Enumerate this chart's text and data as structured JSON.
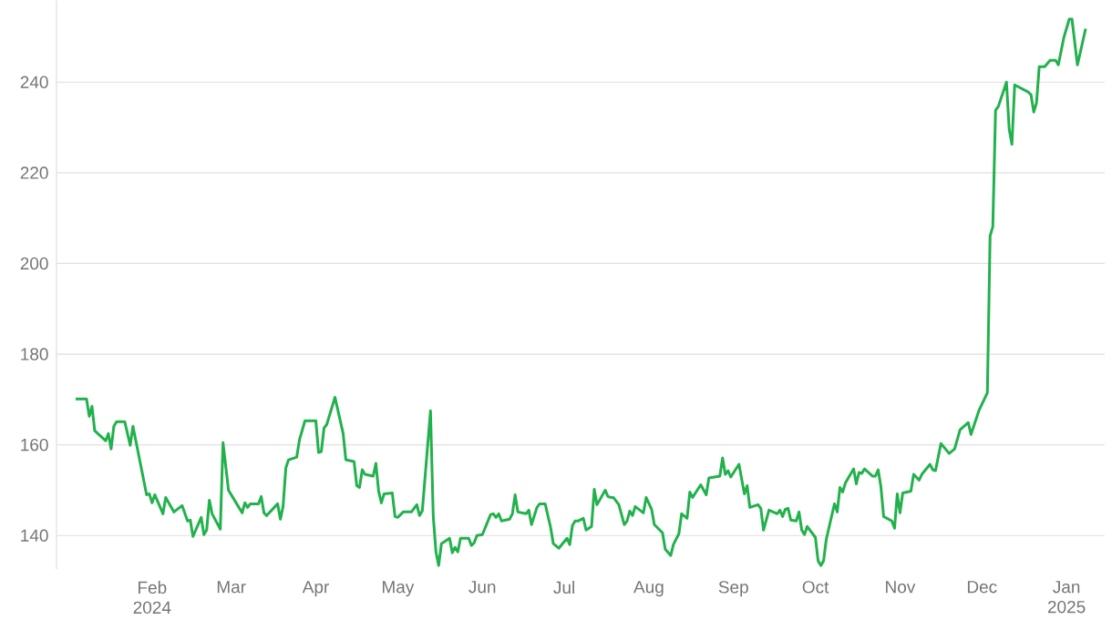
{
  "chart_data": {
    "type": "line",
    "color": "#22b14c",
    "line_style": "solid",
    "grid": "y",
    "xlim": [
      "2023-12-28",
      "2025-01-15"
    ],
    "ylim": [
      132.5,
      258
    ],
    "yticks": [
      140,
      160,
      180,
      200,
      220,
      240
    ],
    "xticks": [
      {
        "value": "2024-02-01",
        "label": "Feb 2024"
      },
      {
        "value": "2024-03-01",
        "label": "Mar"
      },
      {
        "value": "2024-04-01",
        "label": "Apr"
      },
      {
        "value": "2024-05-01",
        "label": "May"
      },
      {
        "value": "2024-06-01",
        "label": "Jun"
      },
      {
        "value": "2024-07-01",
        "label": "Jul"
      },
      {
        "value": "2024-08-01",
        "label": "Aug"
      },
      {
        "value": "2024-09-01",
        "label": "Sep"
      },
      {
        "value": "2024-10-01",
        "label": "Oct"
      },
      {
        "value": "2024-11-01",
        "label": "Nov"
      },
      {
        "value": "2024-12-01",
        "label": "Dec"
      },
      {
        "value": "2025-01-01",
        "label": "Jan 2025"
      }
    ],
    "x": [
      "2024-01-04",
      "2024-01-08",
      "2024-01-09",
      "2024-01-10",
      "2024-01-11",
      "2024-01-15",
      "2024-01-16",
      "2024-01-17",
      "2024-01-18",
      "2024-01-19",
      "2024-01-22",
      "2024-01-24",
      "2024-01-25",
      "2024-01-30",
      "2024-01-31",
      "2024-02-01",
      "2024-02-02",
      "2024-02-05",
      "2024-02-06",
      "2024-02-09",
      "2024-02-12",
      "2024-02-14",
      "2024-02-15",
      "2024-02-16",
      "2024-02-19",
      "2024-02-20",
      "2024-02-21",
      "2024-02-22",
      "2024-02-23",
      "2024-02-26",
      "2024-02-27",
      "2024-02-29",
      "2024-03-03",
      "2024-03-05",
      "2024-03-06",
      "2024-03-07",
      "2024-03-08",
      "2024-03-11",
      "2024-03-12",
      "2024-03-13",
      "2024-03-14",
      "2024-03-18",
      "2024-03-19",
      "2024-03-20",
      "2024-03-21",
      "2024-03-22",
      "2024-03-25",
      "2024-03-26",
      "2024-03-28",
      "2024-04-01",
      "2024-04-02",
      "2024-04-03",
      "2024-04-04",
      "2024-04-05",
      "2024-04-08",
      "2024-04-11",
      "2024-04-12",
      "2024-04-15",
      "2024-04-16",
      "2024-04-17",
      "2024-04-18",
      "2024-04-19",
      "2024-04-22",
      "2024-04-23",
      "2024-04-24",
      "2024-04-25",
      "2024-04-26",
      "2024-04-29",
      "2024-04-30",
      "2024-05-01",
      "2024-05-03",
      "2024-05-06",
      "2024-05-08",
      "2024-05-09",
      "2024-05-10",
      "2024-05-13",
      "2024-05-14",
      "2024-05-15",
      "2024-05-16",
      "2024-05-17",
      "2024-05-20",
      "2024-05-21",
      "2024-05-22",
      "2024-05-23",
      "2024-05-24",
      "2024-05-27",
      "2024-05-28",
      "2024-05-29",
      "2024-05-30",
      "2024-06-01",
      "2024-06-04",
      "2024-06-05",
      "2024-06-06",
      "2024-06-07",
      "2024-06-08",
      "2024-06-11",
      "2024-06-12",
      "2024-06-13",
      "2024-06-14",
      "2024-06-17",
      "2024-06-18",
      "2024-06-19",
      "2024-06-21",
      "2024-06-22",
      "2024-06-24",
      "2024-06-26",
      "2024-06-27",
      "2024-06-29",
      "2024-07-02",
      "2024-07-03",
      "2024-07-04",
      "2024-07-05",
      "2024-07-06",
      "2024-07-08",
      "2024-07-09",
      "2024-07-11",
      "2024-07-12",
      "2024-07-13",
      "2024-07-16",
      "2024-07-17",
      "2024-07-18",
      "2024-07-19",
      "2024-07-21",
      "2024-07-23",
      "2024-07-24",
      "2024-07-25",
      "2024-07-26",
      "2024-07-27",
      "2024-07-30",
      "2024-07-31",
      "2024-08-02",
      "2024-08-03",
      "2024-08-06",
      "2024-08-07",
      "2024-08-09",
      "2024-08-10",
      "2024-08-12",
      "2024-08-13",
      "2024-08-15",
      "2024-08-16",
      "2024-08-17",
      "2024-08-20",
      "2024-08-22",
      "2024-08-23",
      "2024-08-27",
      "2024-08-28",
      "2024-08-29",
      "2024-08-30",
      "2024-08-31",
      "2024-09-03",
      "2024-09-05",
      "2024-09-06",
      "2024-09-07",
      "2024-09-10",
      "2024-09-11",
      "2024-09-12",
      "2024-09-14",
      "2024-09-17",
      "2024-09-18",
      "2024-09-19",
      "2024-09-20",
      "2024-09-21",
      "2024-09-22",
      "2024-09-24",
      "2024-09-25",
      "2024-09-26",
      "2024-09-27",
      "2024-09-28",
      "2024-10-01",
      "2024-10-02",
      "2024-10-03",
      "2024-10-04",
      "2024-10-05",
      "2024-10-08",
      "2024-10-09",
      "2024-10-10",
      "2024-10-11",
      "2024-10-12",
      "2024-10-15",
      "2024-10-16",
      "2024-10-17",
      "2024-10-18",
      "2024-10-19",
      "2024-10-22",
      "2024-10-23",
      "2024-10-24",
      "2024-10-25",
      "2024-10-26",
      "2024-10-29",
      "2024-10-30",
      "2024-10-31",
      "2024-11-01",
      "2024-11-02",
      "2024-11-05",
      "2024-11-06",
      "2024-11-08",
      "2024-11-09",
      "2024-11-12",
      "2024-11-13",
      "2024-11-14",
      "2024-11-16",
      "2024-11-19",
      "2024-11-21",
      "2024-11-23",
      "2024-11-26",
      "2024-11-27",
      "2024-11-30",
      "2024-12-03",
      "2024-12-04",
      "2024-12-05",
      "2024-12-06",
      "2024-12-07",
      "2024-12-10",
      "2024-12-11",
      "2024-12-12",
      "2024-12-13",
      "2024-12-18",
      "2024-12-19",
      "2024-12-20",
      "2024-12-21",
      "2024-12-22",
      "2024-12-24",
      "2024-12-26",
      "2024-12-28",
      "2024-12-29",
      "2024-12-31",
      "2025-01-02",
      "2025-01-03",
      "2025-01-05",
      "2025-01-08"
    ],
    "values": [
      170.1,
      170.1,
      166.3,
      168.5,
      163.1,
      160.9,
      162.5,
      159.1,
      164.1,
      165.1,
      165.1,
      159.9,
      164.1,
      149.0,
      149.2,
      147.2,
      149.0,
      144.8,
      148.4,
      145.2,
      146.6,
      143.2,
      143.4,
      139.8,
      144.0,
      140.2,
      141.2,
      147.8,
      144.8,
      141.4,
      160.5,
      150.0,
      147.0,
      145.0,
      147.2,
      146.2,
      147.0,
      147.0,
      148.6,
      145.0,
      144.4,
      147.0,
      143.6,
      146.4,
      154.9,
      156.7,
      157.3,
      161.1,
      165.3,
      165.3,
      158.3,
      158.5,
      163.7,
      164.5,
      170.5,
      162.5,
      156.7,
      156.3,
      151.0,
      150.6,
      154.5,
      153.5,
      153.1,
      155.9,
      149.8,
      147.2,
      149.2,
      149.4,
      144.2,
      144.0,
      145.2,
      145.2,
      146.8,
      144.4,
      145.4,
      167.5,
      144.4,
      136.4,
      133.4,
      138.2,
      139.4,
      136.2,
      137.4,
      136.4,
      139.4,
      139.4,
      137.8,
      138.4,
      140.0,
      140.2,
      144.6,
      144.8,
      144.0,
      144.8,
      143.2,
      143.6,
      144.8,
      149.0,
      145.2,
      144.8,
      145.6,
      142.4,
      146.2,
      147.0,
      147.0,
      141.8,
      138.2,
      137.2,
      139.4,
      138.0,
      142.2,
      143.2,
      143.2,
      143.8,
      141.2,
      142.0,
      150.2,
      146.8,
      150.0,
      148.6,
      148.4,
      148.4,
      146.8,
      142.4,
      143.2,
      145.4,
      144.4,
      146.4,
      145.0,
      148.4,
      145.8,
      142.4,
      140.6,
      137.0,
      135.6,
      138.0,
      140.4,
      144.8,
      143.8,
      149.6,
      148.4,
      151.2,
      149.0,
      152.7,
      153.1,
      157.1,
      153.5,
      154.3,
      152.9,
      155.7,
      149.2,
      151.0,
      146.2,
      146.8,
      146.0,
      141.2,
      145.6,
      144.8,
      145.6,
      144.2,
      145.8,
      146.0,
      143.4,
      143.2,
      145.2,
      141.2,
      140.2,
      142.0,
      139.6,
      134.4,
      133.4,
      134.4,
      139.2,
      147.0,
      145.2,
      150.6,
      149.6,
      151.6,
      154.7,
      151.4,
      153.9,
      153.7,
      154.7,
      153.1,
      153.1,
      154.5,
      150.8,
      144.2,
      143.2,
      141.6,
      149.2,
      145.0,
      149.4,
      149.8,
      153.5,
      152.2,
      153.5,
      155.7,
      154.5,
      154.3,
      160.3,
      158.1,
      159.1,
      163.3,
      164.9,
      162.3,
      167.7,
      171.5,
      206.1,
      208.1,
      233.8,
      234.6,
      240.0,
      229.6,
      226.3,
      239.4,
      237.8,
      237.2,
      233.4,
      235.4,
      243.4,
      243.4,
      244.8,
      244.8,
      243.8,
      249.8,
      253.9,
      253.9,
      243.8,
      251.8
    ]
  }
}
